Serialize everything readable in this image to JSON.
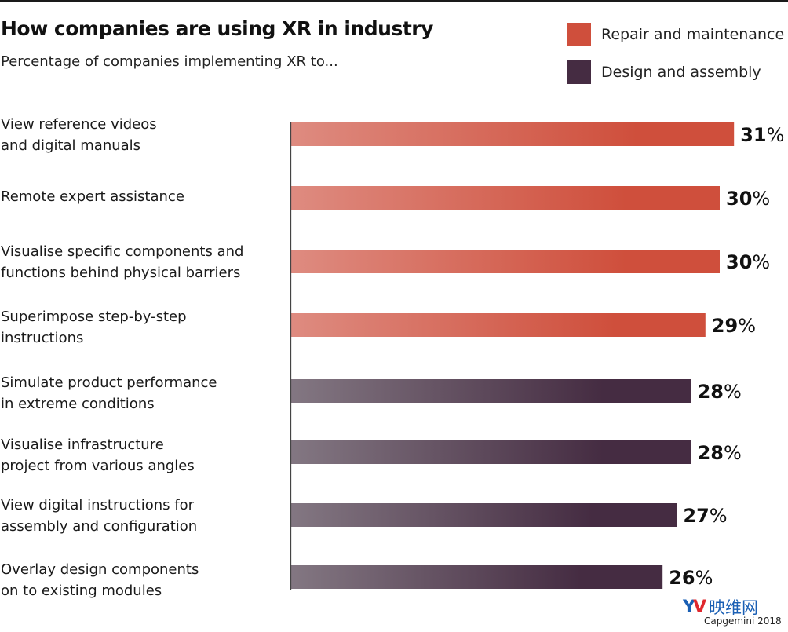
{
  "chart_data": {
    "type": "bar",
    "orientation": "horizontal",
    "title": "How companies are using XR in industry",
    "subtitle": "Percentage of companies implementing XR to...",
    "xlabel": "",
    "ylabel": "",
    "xlim": [
      0,
      31
    ],
    "grid": false,
    "legend_position": "top-right",
    "unit": "%",
    "series": [
      {
        "name": "Repair and maintenance",
        "color": "#cf4f3c",
        "color_light": "#de8b80"
      },
      {
        "name": "Design and assembly",
        "color": "#452c42",
        "color_light": "#837782"
      }
    ],
    "categories": [
      "View reference videos\nand digital manuals",
      "Remote expert assistance",
      "Visualise specific components and\nfunctions behind physical barriers",
      "Superimpose step-by-step\ninstructions",
      "Simulate product performance\nin extreme conditions",
      "Visualise infrastructure\nproject from various angles",
      "View digital instructions for\nassembly and configuration",
      "Overlay design components\non to existing modules"
    ],
    "values": [
      31,
      30,
      30,
      29,
      28,
      28,
      27,
      26
    ],
    "value_labels": [
      "31%",
      "30%",
      "30%",
      "29%",
      "28%",
      "28%",
      "27%",
      "26%"
    ],
    "series_index": [
      0,
      0,
      0,
      0,
      1,
      1,
      1,
      1
    ]
  },
  "legend": [
    {
      "label": "Repair and maintenance",
      "color": "#cf4f3c"
    },
    {
      "label": "Design and assembly",
      "color": "#452c42"
    }
  ],
  "watermark": {
    "logo_y": "Y",
    "logo_v": "V",
    "text": "映维网"
  },
  "source": "Capgemini 2018"
}
